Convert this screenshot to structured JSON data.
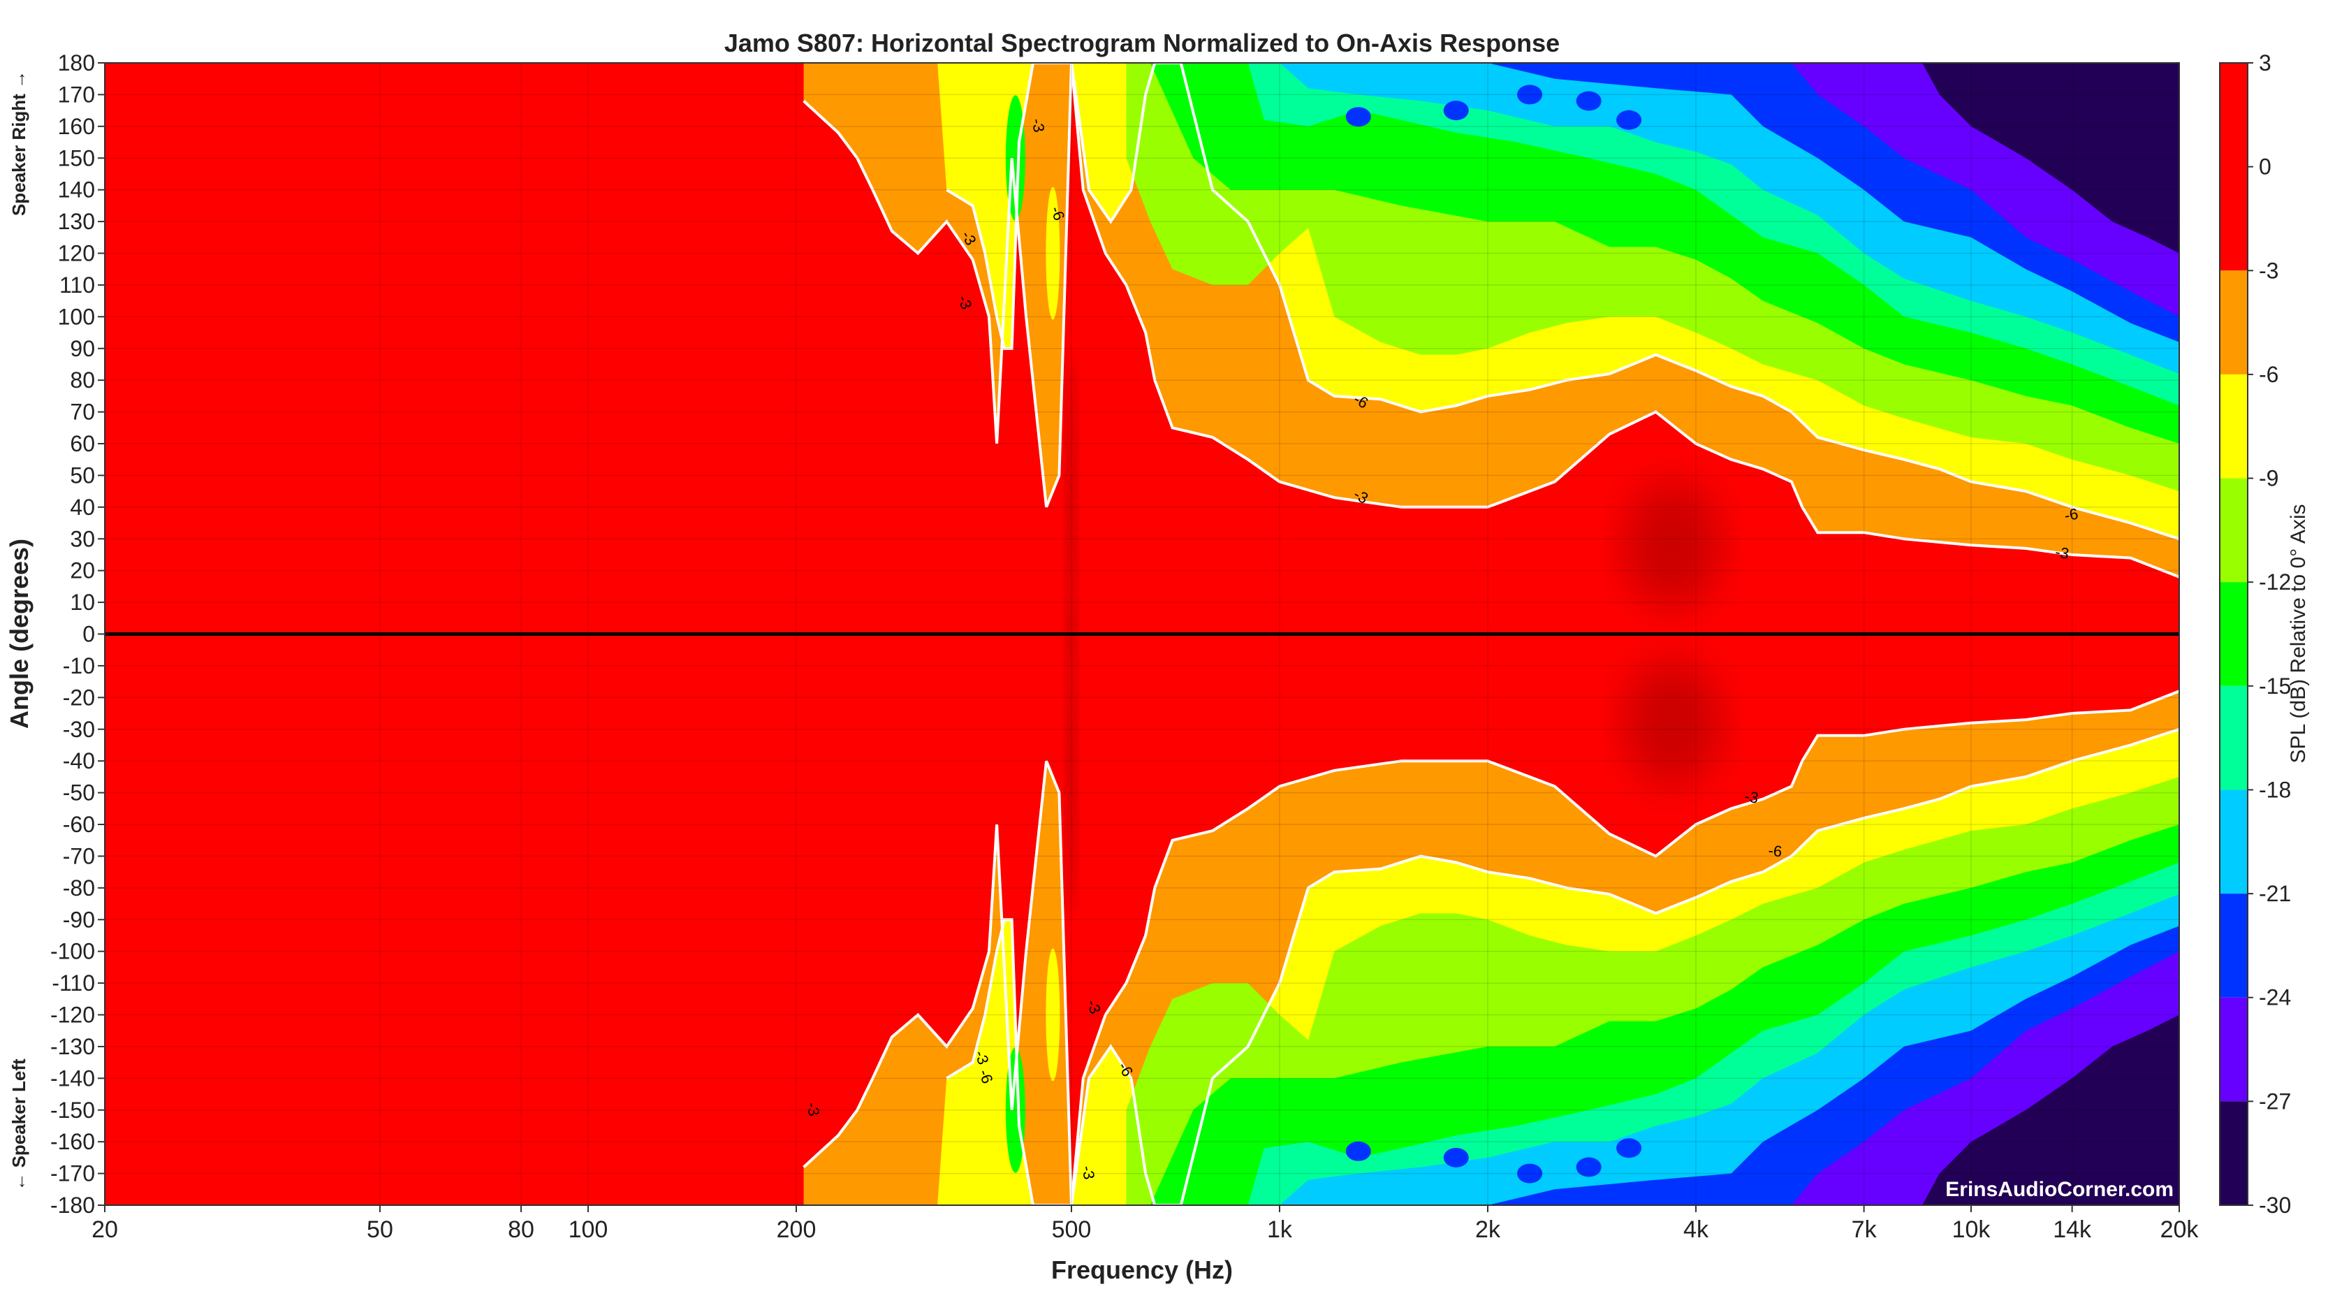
{
  "chart_data": {
    "type": "heatmap",
    "title": "Jamo S807: Horizontal Spectrogram Normalized to On-Axis Response",
    "xlabel": "Frequency (Hz)",
    "ylabel": "Angle (degrees)",
    "speaker_right_label": "Speaker Right →",
    "speaker_left_label": "← Speaker Left",
    "colorbar_label": "SPL (dB) Relative to 0° Axis",
    "watermark": "ErinsAudioCorner.com",
    "x_scale": "log",
    "xlim": [
      20,
      20000
    ],
    "ylim": [
      -180,
      180
    ],
    "x_ticks": [
      {
        "value": 20,
        "label": "20"
      },
      {
        "value": 50,
        "label": "50"
      },
      {
        "value": 80,
        "label": "80"
      },
      {
        "value": 100,
        "label": "100"
      },
      {
        "value": 200,
        "label": "200"
      },
      {
        "value": 500,
        "label": "500"
      },
      {
        "value": 1000,
        "label": "1k"
      },
      {
        "value": 2000,
        "label": "2k"
      },
      {
        "value": 4000,
        "label": "4k"
      },
      {
        "value": 7000,
        "label": "7k"
      },
      {
        "value": 10000,
        "label": "10k"
      },
      {
        "value": 14000,
        "label": "14k"
      },
      {
        "value": 20000,
        "label": "20k"
      }
    ],
    "y_ticks": [
      180,
      170,
      160,
      150,
      140,
      130,
      120,
      110,
      100,
      90,
      80,
      70,
      60,
      50,
      40,
      30,
      20,
      10,
      0,
      -10,
      -20,
      -30,
      -40,
      -50,
      -60,
      -70,
      -80,
      -90,
      -100,
      -110,
      -120,
      -130,
      -140,
      -150,
      -160,
      -170,
      -180
    ],
    "colorbar": {
      "range": [
        -30,
        3
      ],
      "ticks": [
        3,
        0,
        -3,
        -6,
        -9,
        -12,
        -15,
        -18,
        -21,
        -24,
        -27,
        -30
      ]
    },
    "levels": [
      {
        "min": -3,
        "color": "#ff0000"
      },
      {
        "min": -6,
        "color": "#ff9900"
      },
      {
        "min": -9,
        "color": "#ffff00"
      },
      {
        "min": -12,
        "color": "#99ff00"
      },
      {
        "min": -15,
        "color": "#00ff00"
      },
      {
        "min": -18,
        "color": "#00ff99"
      },
      {
        "min": -21,
        "color": "#00ccff"
      },
      {
        "min": -24,
        "color": "#0033ff"
      },
      {
        "min": -27,
        "color": "#6600ff"
      },
      {
        "min": -30,
        "color": "#220055"
      }
    ],
    "contour_labels": [
      "-3",
      "-6"
    ],
    "approx_bandwidth_deg": {
      "frequencies_hz": [
        20,
        200,
        320,
        380,
        420,
        470,
        520,
        600,
        700,
        900,
        1000,
        1500,
        2000,
        2500,
        3000,
        3500,
        4000,
        5000,
        6000,
        8000,
        10000,
        14000,
        20000
      ],
      "minus3db_angle": [
        180,
        180,
        100,
        60,
        180,
        180,
        180,
        120,
        70,
        60,
        55,
        45,
        40,
        42,
        55,
        68,
        60,
        50,
        38,
        35,
        30,
        25,
        20
      ],
      "minus6db_angle": [
        180,
        180,
        180,
        180,
        180,
        180,
        180,
        150,
        130,
        100,
        82,
        70,
        72,
        80,
        80,
        85,
        80,
        68,
        60,
        52,
        45,
        38,
        30
      ]
    }
  },
  "colors": {
    "zero_line": "#000000",
    "contour_line": "#ffffff",
    "background": "#ffffff"
  }
}
